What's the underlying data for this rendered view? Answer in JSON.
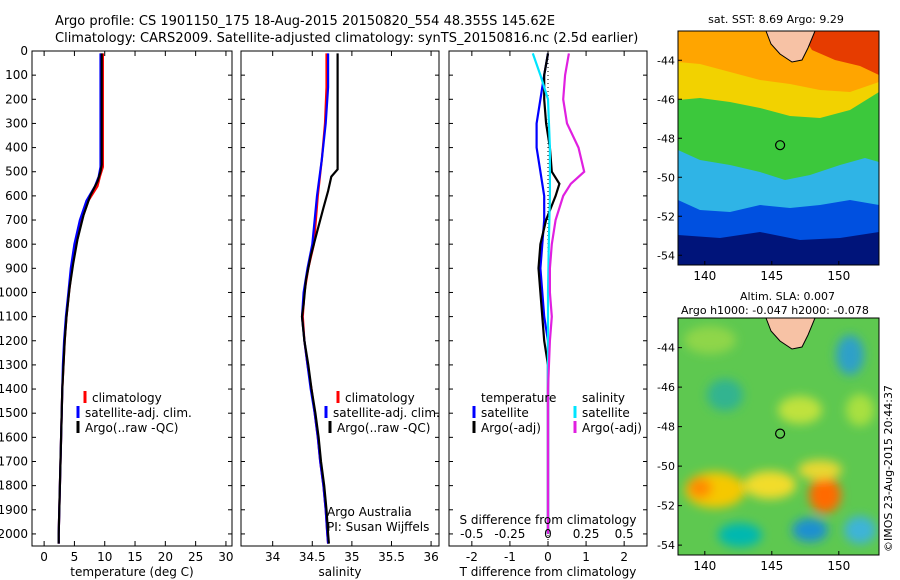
{
  "header": {
    "title_line1": "Argo profile: CS 1901150_175 18-Aug-2015 20150820_554 48.355S 145.62E",
    "title_line2": "Climatology: CARS2009. Satellite-adjusted climatology: synTS_20150816.nc (2.5d earlier)"
  },
  "colors": {
    "climatology": "#ff0000",
    "satellite": "#0000ff",
    "argo": "#000000",
    "satellite_salinity": "#00e5ff",
    "argo_salinity": "#e020e0"
  },
  "chart_data": [
    {
      "id": "temperature",
      "type": "line",
      "xlabel": "temperature (deg C)",
      "ylabel": "",
      "xlim": [
        -2,
        31
      ],
      "ylim": [
        2050,
        0
      ],
      "xticks": [
        "0",
        "5",
        "10",
        "15",
        "20",
        "25",
        "30"
      ],
      "yticks": [
        "0",
        "100",
        "200",
        "300",
        "400",
        "500",
        "600",
        "700",
        "800",
        "900",
        "1000",
        "1100",
        "1200",
        "1300",
        "1400",
        "1500",
        "1600",
        "1700",
        "1800",
        "1900",
        "2000"
      ],
      "legend": [
        "climatology",
        "satellite-adj. clim.",
        "Argo(..raw -QC)"
      ],
      "series": [
        {
          "name": "climatology",
          "color": "#ff0000",
          "points": [
            [
              9.7,
              10
            ],
            [
              9.7,
              100
            ],
            [
              9.7,
              300
            ],
            [
              9.7,
              480
            ],
            [
              9.2,
              520
            ],
            [
              8.8,
              560
            ],
            [
              7.3,
              620
            ],
            [
              6.2,
              700
            ],
            [
              5.3,
              800
            ],
            [
              4.6,
              900
            ],
            [
              4.1,
              1000
            ],
            [
              3.7,
              1100
            ],
            [
              3.4,
              1200
            ],
            [
              3.2,
              1300
            ],
            [
              3.0,
              1400
            ],
            [
              2.9,
              1500
            ],
            [
              2.8,
              1600
            ],
            [
              2.7,
              1700
            ],
            [
              2.6,
              1800
            ],
            [
              2.5,
              1900
            ],
            [
              2.4,
              2000
            ],
            [
              2.4,
              2040
            ]
          ]
        },
        {
          "name": "satellite-adj. clim.",
          "color": "#0000ff",
          "points": [
            [
              9.3,
              10
            ],
            [
              9.3,
              100
            ],
            [
              9.3,
              300
            ],
            [
              9.3,
              480
            ],
            [
              9.0,
              520
            ],
            [
              8.4,
              560
            ],
            [
              7.0,
              620
            ],
            [
              5.9,
              700
            ],
            [
              5.0,
              800
            ],
            [
              4.4,
              900
            ],
            [
              4.0,
              1000
            ],
            [
              3.6,
              1100
            ],
            [
              3.3,
              1200
            ],
            [
              3.1,
              1300
            ],
            [
              3.0,
              1400
            ],
            [
              2.9,
              1500
            ],
            [
              2.8,
              1600
            ],
            [
              2.7,
              1700
            ],
            [
              2.6,
              1800
            ],
            [
              2.5,
              1900
            ],
            [
              2.4,
              2000
            ],
            [
              2.4,
              2040
            ]
          ]
        },
        {
          "name": "Argo(..raw -QC)",
          "color": "#000000",
          "points": [
            [
              9.5,
              10
            ],
            [
              9.5,
              100
            ],
            [
              9.5,
              300
            ],
            [
              9.5,
              470
            ],
            [
              9.3,
              500
            ],
            [
              8.8,
              540
            ],
            [
              7.6,
              600
            ],
            [
              6.5,
              680
            ],
            [
              5.5,
              780
            ],
            [
              4.8,
              880
            ],
            [
              4.2,
              980
            ],
            [
              3.7,
              1100
            ],
            [
              3.4,
              1200
            ],
            [
              3.2,
              1300
            ],
            [
              3.0,
              1400
            ],
            [
              2.9,
              1500
            ],
            [
              2.8,
              1600
            ],
            [
              2.7,
              1700
            ],
            [
              2.6,
              1800
            ],
            [
              2.5,
              1900
            ],
            [
              2.4,
              2000
            ],
            [
              2.4,
              2040
            ]
          ]
        }
      ]
    },
    {
      "id": "salinity",
      "type": "line",
      "xlabel": "salinity",
      "ylabel": "",
      "xlim": [
        33.6,
        36.1
      ],
      "ylim": [
        2050,
        0
      ],
      "xticks": [
        "34",
        "34.5",
        "35",
        "35.5",
        "36"
      ],
      "legend": [
        "climatology",
        "satellite-adj. clim.",
        "Argo(..raw -QC)"
      ],
      "note_line1": "Argo Australia",
      "note_line2": "PI: Susan Wijffels",
      "series": [
        {
          "name": "climatology",
          "color": "#ff0000",
          "points": [
            [
              34.68,
              10
            ],
            [
              34.68,
              150
            ],
            [
              34.66,
              300
            ],
            [
              34.62,
              450
            ],
            [
              34.57,
              600
            ],
            [
              34.52,
              800
            ],
            [
              34.45,
              900
            ],
            [
              34.4,
              1000
            ],
            [
              34.38,
              1100
            ],
            [
              34.4,
              1200
            ],
            [
              34.44,
              1300
            ],
            [
              34.49,
              1400
            ],
            [
              34.53,
              1500
            ],
            [
              34.57,
              1600
            ],
            [
              34.6,
              1700
            ],
            [
              34.64,
              1800
            ],
            [
              34.67,
              1900
            ],
            [
              34.69,
              2000
            ],
            [
              34.7,
              2040
            ]
          ]
        },
        {
          "name": "satellite-adj. clim.",
          "color": "#0000ff",
          "points": [
            [
              34.7,
              10
            ],
            [
              34.7,
              150
            ],
            [
              34.67,
              300
            ],
            [
              34.62,
              450
            ],
            [
              34.56,
              600
            ],
            [
              34.5,
              800
            ],
            [
              34.44,
              900
            ],
            [
              34.39,
              1000
            ],
            [
              34.37,
              1100
            ],
            [
              34.4,
              1200
            ],
            [
              34.44,
              1300
            ],
            [
              34.48,
              1400
            ],
            [
              34.53,
              1500
            ],
            [
              34.57,
              1600
            ],
            [
              34.6,
              1700
            ],
            [
              34.64,
              1800
            ],
            [
              34.67,
              1900
            ],
            [
              34.69,
              2000
            ],
            [
              34.7,
              2040
            ]
          ]
        },
        {
          "name": "Argo(..raw -QC)",
          "color": "#000000",
          "points": [
            [
              34.82,
              10
            ],
            [
              34.82,
              200
            ],
            [
              34.82,
              400
            ],
            [
              34.82,
              490
            ],
            [
              34.74,
              520
            ],
            [
              34.7,
              580
            ],
            [
              34.64,
              650
            ],
            [
              34.56,
              750
            ],
            [
              34.48,
              850
            ],
            [
              34.42,
              950
            ],
            [
              34.39,
              1050
            ],
            [
              34.37,
              1100
            ],
            [
              34.4,
              1200
            ],
            [
              34.45,
              1300
            ],
            [
              34.49,
              1400
            ],
            [
              34.54,
              1500
            ],
            [
              34.58,
              1600
            ],
            [
              34.61,
              1700
            ],
            [
              34.65,
              1800
            ],
            [
              34.68,
              1900
            ],
            [
              34.7,
              2000
            ],
            [
              34.71,
              2040
            ]
          ]
        }
      ]
    },
    {
      "id": "differences",
      "type": "line",
      "xlabel": "T difference from climatology",
      "xlabel_top": "S difference from climatology",
      "ylabel": "",
      "xlim": [
        -2.6,
        2.6
      ],
      "ylim": [
        2050,
        0
      ],
      "xticks": [
        "-2",
        "-1",
        "0",
        "1",
        "2"
      ],
      "xticks_s": [
        "-0.5",
        "-0.25",
        "0",
        "0.25",
        "0.5"
      ],
      "legend_headers": [
        "temperature",
        "salinity"
      ],
      "legend_temperature": [
        "satellite",
        "Argo(-adj)"
      ],
      "legend_salinity": [
        "satellite",
        "Argo(-adj)"
      ],
      "series": [
        {
          "name": "T satellite",
          "color": "#0000ff",
          "points": [
            [
              0,
              10
            ],
            [
              -0.1,
              100
            ],
            [
              -0.2,
              200
            ],
            [
              -0.3,
              300
            ],
            [
              -0.3,
              400
            ],
            [
              -0.2,
              500
            ],
            [
              -0.1,
              600
            ],
            [
              -0.1,
              700
            ],
            [
              -0.15,
              800
            ],
            [
              -0.2,
              900
            ],
            [
              -0.15,
              1000
            ],
            [
              -0.1,
              1100
            ],
            [
              0,
              1200
            ],
            [
              0,
              1500
            ],
            [
              0,
              2000
            ]
          ]
        },
        {
          "name": "T Argo(-adj)",
          "color": "#000000",
          "points": [
            [
              0,
              10
            ],
            [
              -0.1,
              100
            ],
            [
              -0.1,
              200
            ],
            [
              -0.05,
              300
            ],
            [
              0.05,
              400
            ],
            [
              0.1,
              500
            ],
            [
              0.3,
              550
            ],
            [
              0.2,
              600
            ],
            [
              -0.05,
              700
            ],
            [
              -0.2,
              800
            ],
            [
              -0.25,
              900
            ],
            [
              -0.2,
              1000
            ],
            [
              -0.15,
              1100
            ],
            [
              -0.1,
              1200
            ],
            [
              0,
              1300
            ],
            [
              0,
              1600
            ],
            [
              0,
              2000
            ]
          ]
        },
        {
          "name": "S satellite",
          "color": "#00e5ff",
          "points": [
            [
              -0.4,
              10
            ],
            [
              -0.2,
              100
            ],
            [
              0,
              200
            ],
            [
              0.05,
              400
            ],
            [
              0.05,
              600
            ],
            [
              0.02,
              800
            ],
            [
              0,
              1000
            ],
            [
              0,
              1500
            ],
            [
              0,
              2000
            ]
          ]
        },
        {
          "name": "S Argo(-adj)",
          "color": "#e020e0",
          "points": [
            [
              0.55,
              10
            ],
            [
              0.45,
              100
            ],
            [
              0.4,
              200
            ],
            [
              0.5,
              300
            ],
            [
              0.8,
              400
            ],
            [
              0.95,
              500
            ],
            [
              0.6,
              550
            ],
            [
              0.4,
              600
            ],
            [
              0.2,
              700
            ],
            [
              0.1,
              800
            ],
            [
              0.05,
              900
            ],
            [
              0.05,
              1000
            ],
            [
              0.1,
              1100
            ],
            [
              0.05,
              1200
            ],
            [
              0,
              1400
            ],
            [
              0,
              2000
            ]
          ]
        }
      ]
    },
    {
      "id": "sst_map",
      "type": "heatmap",
      "title": "sat. SST: 8.69  Argo: 9.29",
      "xlim": [
        138,
        153
      ],
      "ylim": [
        -54.5,
        -42.5
      ],
      "xticks": [
        "140",
        "145",
        "150"
      ],
      "yticks": [
        "-44",
        "-46",
        "-48",
        "-50",
        "-52",
        "-54"
      ],
      "float_position": [
        145.62,
        -48.355
      ]
    },
    {
      "id": "sla_map",
      "type": "heatmap",
      "title_line1": "Altim. SLA: 0.007",
      "title_line2": "Argo h1000: -0.047  h2000: -0.078",
      "xlim": [
        138,
        153
      ],
      "ylim": [
        -54.5,
        -42.5
      ],
      "xticks": [
        "140",
        "145",
        "150"
      ],
      "yticks": [
        "-44",
        "-46",
        "-48",
        "-50",
        "-52",
        "-54"
      ],
      "float_position": [
        145.62,
        -48.355
      ]
    }
  ],
  "footer": {
    "credit": "©IMOS 23-Aug-2015 20:44:37"
  }
}
